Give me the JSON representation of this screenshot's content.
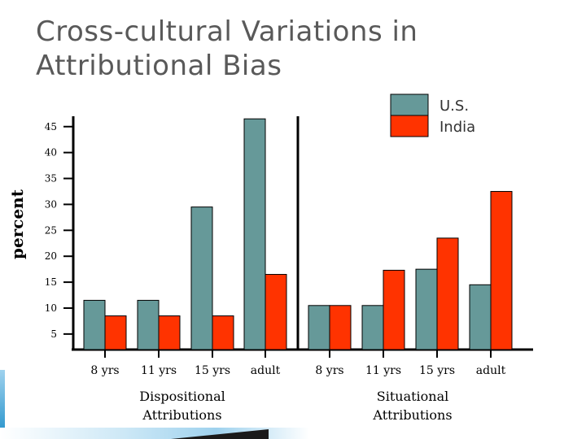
{
  "slide": {
    "title_line1": "Cross-cultural Variations in",
    "title_line2": "Attributional Bias"
  },
  "chart_data": {
    "type": "bar",
    "ylabel": "percent",
    "ylim": [
      2,
      47
    ],
    "yticks": [
      5,
      10,
      15,
      20,
      25,
      30,
      35,
      40,
      45
    ],
    "legend_position": "top-right",
    "grid": false,
    "groups": [
      {
        "label_line1": "Dispositional",
        "label_line2": "Attributions",
        "categories": [
          "8 yrs",
          "11 yrs",
          "15 yrs",
          "adult"
        ],
        "series": [
          {
            "name": "U.S.",
            "values": [
              11.5,
              11.5,
              29.5,
              46.5
            ]
          },
          {
            "name": "India",
            "values": [
              8.5,
              8.5,
              8.5,
              16.5
            ]
          }
        ]
      },
      {
        "label_line1": "Situational",
        "label_line2": "Attributions",
        "categories": [
          "8 yrs",
          "11 yrs",
          "15 yrs",
          "adult"
        ],
        "series": [
          {
            "name": "U.S.",
            "values": [
              10.5,
              10.5,
              17.5,
              14.5
            ]
          },
          {
            "name": "India",
            "values": [
              10.5,
              17.3,
              23.5,
              32.5
            ]
          }
        ]
      }
    ],
    "series_colors": {
      "U.S.": "#669999",
      "India": "#ff3300"
    }
  }
}
